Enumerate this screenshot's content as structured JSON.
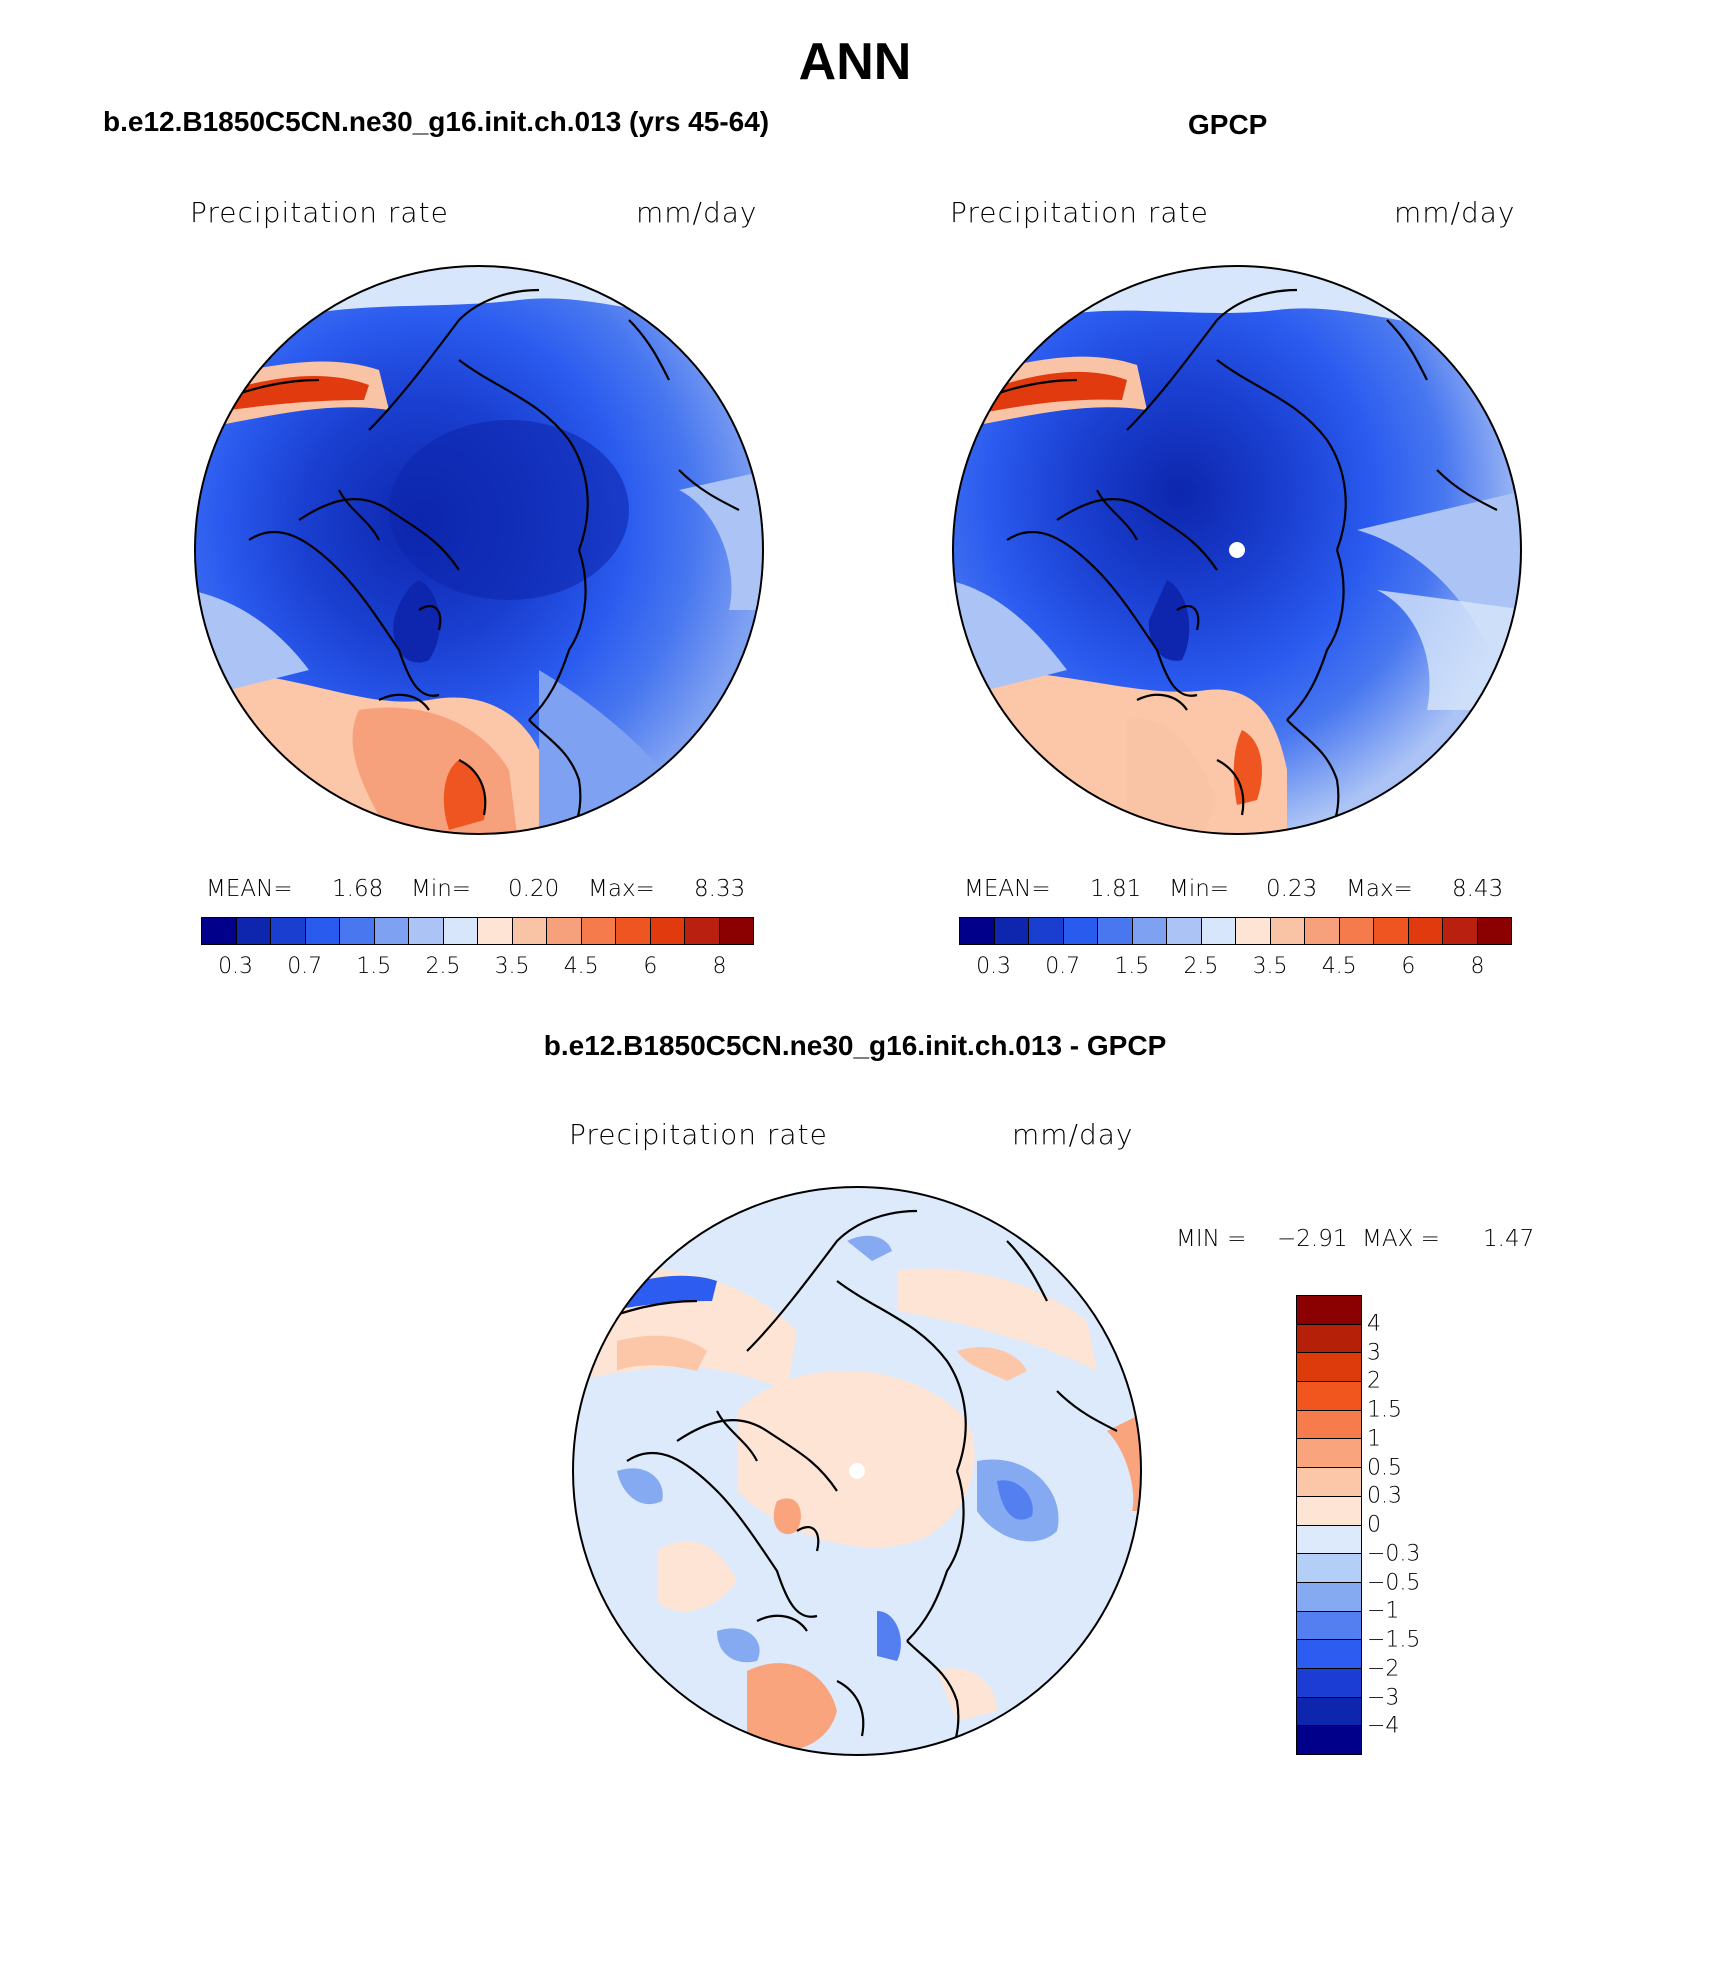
{
  "title": "ANN",
  "panels": {
    "model": {
      "title": "b.e12.B1850C5CN.ne30_g16.init.ch.013 (yrs 45-64)",
      "variable": "Precipitation rate",
      "units": "mm/day",
      "mean_label": "MEAN=",
      "mean": "1.68",
      "min_label": "Min=",
      "min": "0.20",
      "max_label": "Max=",
      "max": "8.33"
    },
    "obs": {
      "title": "GPCP",
      "variable": "Precipitation rate",
      "units": "mm/day",
      "mean_label": "MEAN=",
      "mean": "1.81",
      "min_label": "Min=",
      "min": "0.23",
      "max_label": "Max=",
      "max": "8.43"
    },
    "diff": {
      "title": "b.e12.B1850C5CN.ne30_g16.init.ch.013 - GPCP",
      "variable": "Precipitation rate",
      "units": "mm/day",
      "min_label": "MIN =",
      "min": "−2.91",
      "max_label": "MAX =",
      "max": "1.47"
    }
  },
  "colors": {
    "abs_scale": [
      "#00008b",
      "#0d26ad",
      "#1a3fd0",
      "#2a5bef",
      "#4877f0",
      "#7fa1f2",
      "#abc3f5",
      "#d7e6fa",
      "#fde4d4",
      "#f9c3a6",
      "#f6a17c",
      "#f57a4c",
      "#ef5520",
      "#e03a0e",
      "#b92010",
      "#8b0000"
    ],
    "diff_scale": [
      "#8b0000",
      "#b52009",
      "#dd3b0c",
      "#f2561f",
      "#f77c4b",
      "#f9a47d",
      "#fcc6a9",
      "#fde4d4",
      "#ddeafb",
      "#b3cef7",
      "#86aaf2",
      "#547ff0",
      "#2d5df0",
      "#1b3dd3",
      "#0d26ad",
      "#00008b"
    ]
  },
  "chart_data": [
    {
      "type": "heatmap",
      "projection": "north polar stereographic",
      "title": "b.e12.B1850C5CN.ne30_g16.init.ch.013 (yrs 45-64)",
      "variable": "Precipitation rate",
      "units": "mm/day",
      "stats": {
        "mean": 1.68,
        "min": 0.2,
        "max": 8.33
      },
      "contour_levels": [
        0.2,
        0.3,
        0.5,
        0.7,
        1,
        1.5,
        2,
        2.5,
        3,
        3.5,
        4,
        4.5,
        5,
        6,
        7,
        8
      ],
      "colorbar_tick_labels": [
        "0.3",
        "0.7",
        "1.5",
        "2.5",
        "3.5",
        "4.5",
        "6",
        "8"
      ]
    },
    {
      "type": "heatmap",
      "projection": "north polar stereographic",
      "title": "GPCP",
      "variable": "Precipitation rate",
      "units": "mm/day",
      "stats": {
        "mean": 1.81,
        "min": 0.23,
        "max": 8.43
      },
      "contour_levels": [
        0.2,
        0.3,
        0.5,
        0.7,
        1,
        1.5,
        2,
        2.5,
        3,
        3.5,
        4,
        4.5,
        5,
        6,
        7,
        8
      ],
      "colorbar_tick_labels": [
        "0.3",
        "0.7",
        "1.5",
        "2.5",
        "3.5",
        "4.5",
        "6",
        "8"
      ]
    },
    {
      "type": "heatmap",
      "projection": "north polar stereographic",
      "title": "b.e12.B1850C5CN.ne30_g16.init.ch.013 - GPCP",
      "variable": "Precipitation rate",
      "units": "mm/day",
      "stats": {
        "min": -2.91,
        "max": 1.47
      },
      "contour_levels": [
        4,
        3,
        2,
        1.5,
        1,
        0.5,
        0.3,
        0,
        -0.3,
        -0.5,
        -1,
        -1.5,
        -2,
        -3,
        -4
      ],
      "colorbar_tick_labels": [
        "4",
        "3",
        "2",
        "1.5",
        "1",
        "0.5",
        "0.3",
        "0",
        "−0.3",
        "−0.5",
        "−1",
        "−1.5",
        "−2",
        "−3",
        "−4"
      ]
    }
  ]
}
